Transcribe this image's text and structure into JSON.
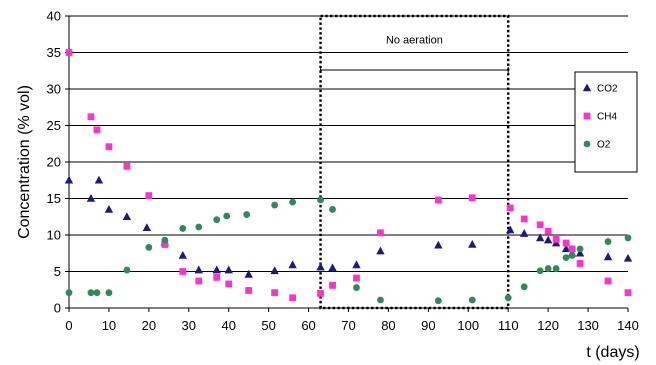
{
  "chart_data": {
    "type": "scatter",
    "title": "",
    "xlabel": "t (days)",
    "ylabel": "Concentration (% vol)",
    "xlim": [
      0,
      140
    ],
    "ylim": [
      0,
      40
    ],
    "x_ticks": [
      0,
      10,
      20,
      30,
      40,
      50,
      60,
      70,
      80,
      90,
      100,
      110,
      120,
      130,
      140
    ],
    "y_ticks": [
      0,
      5,
      10,
      15,
      20,
      25,
      30,
      35,
      40
    ],
    "grid": "horizontal",
    "legend_position": "right",
    "series": [
      {
        "name": "CO2",
        "marker": "triangle",
        "color": "#1a1a80",
        "x": [
          0,
          5.5,
          7.5,
          10,
          14.5,
          19.5,
          24,
          28.5,
          32.5,
          37,
          40,
          45,
          51.5,
          56,
          63,
          66,
          72,
          78,
          92.5,
          101,
          110.5,
          114,
          118,
          120,
          122,
          124.5,
          126,
          128,
          135,
          140
        ],
        "y": [
          17.5,
          15,
          17.5,
          13.5,
          12.5,
          11,
          9,
          7.2,
          5.2,
          5.2,
          5.2,
          4.6,
          5.1,
          5.9,
          5.6,
          5.5,
          5.9,
          7.8,
          8.6,
          8.7,
          10.7,
          10.2,
          9.6,
          9.3,
          8.9,
          8.1,
          7.5,
          7.5,
          7.0,
          6.8
        ]
      },
      {
        "name": "CH4",
        "marker": "square",
        "color": "#ff33cc",
        "x": [
          0,
          5.5,
          7,
          10,
          14.5,
          20,
          24,
          28.5,
          32.5,
          37,
          40,
          45,
          51.5,
          56,
          63,
          66,
          72,
          78,
          92.5,
          101,
          110.5,
          114,
          118,
          120,
          122,
          124.5,
          126,
          128,
          135,
          140
        ],
        "y": [
          35,
          26.2,
          24.4,
          22.1,
          19.4,
          15.4,
          8.7,
          5,
          3.7,
          4.2,
          3.3,
          2.4,
          2.1,
          1.4,
          2,
          3.1,
          4.1,
          10.3,
          14.8,
          15.1,
          13.7,
          12.2,
          11.4,
          10.5,
          9.4,
          8.9,
          8.1,
          6.1,
          3.7,
          2.1
        ]
      },
      {
        "name": "O2",
        "marker": "circle",
        "color": "#2e8b57",
        "x": [
          0,
          5.5,
          7,
          10,
          14.5,
          20,
          24,
          28.5,
          32.5,
          37,
          39.5,
          44.5,
          51.5,
          56,
          63,
          66,
          72,
          78,
          92.5,
          101,
          110,
          114,
          118,
          120,
          122,
          124.5,
          126,
          128,
          135,
          140
        ],
        "y": [
          2.1,
          2.1,
          2.1,
          2.1,
          5.2,
          8.3,
          9.3,
          10.9,
          11.1,
          12.1,
          12.6,
          12.8,
          14.1,
          14.5,
          14.8,
          13.5,
          2.8,
          1.1,
          1.0,
          1.1,
          1.4,
          2.9,
          5.1,
          5.4,
          5.4,
          6.9,
          7.2,
          8.1,
          9.1,
          9.6
        ]
      }
    ],
    "annotations": [
      {
        "text": "No aeration",
        "x_start": 63,
        "x_end": 110
      }
    ]
  }
}
